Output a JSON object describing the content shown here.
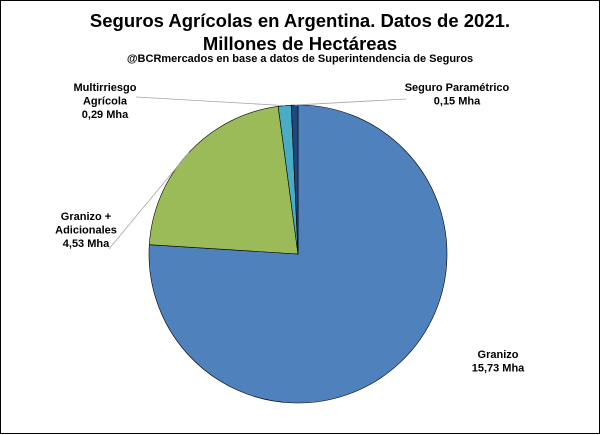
{
  "chart_data": {
    "type": "pie",
    "title_line1": "Seguros Agrícolas en Argentina. Datos de 2021.",
    "title_line2": "Millones de Hectáreas",
    "subtitle": "@BCRmercados en base a datos de Superintendencia de Seguros",
    "unit": "Mha",
    "slices": [
      {
        "label_lines": [
          "Granizo",
          "15,73 Mha"
        ],
        "value": 15.73,
        "color": "#4f81bd"
      },
      {
        "label_lines": [
          "Granizo +",
          "Adicionales",
          "4,53 Mha"
        ],
        "value": 4.53,
        "color": "#9bbb59"
      },
      {
        "label_lines": [
          "Multirriesgo",
          "Agrícola",
          "0,29 Mha"
        ],
        "value": 0.29,
        "color": "#4bacc6"
      },
      {
        "label_lines": [
          "Seguro Paramétrico",
          "0,15 Mha"
        ],
        "value": 0.15,
        "color": "#1f497d"
      }
    ]
  }
}
